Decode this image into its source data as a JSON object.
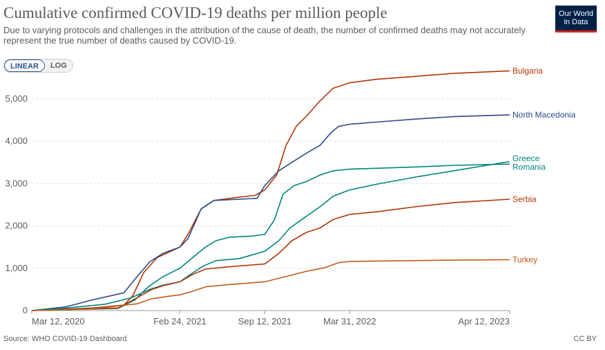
{
  "header": {
    "title": "Cumulative confirmed COVID-19 deaths per million people",
    "subtitle": "Due to varying protocols and challenges in the attribution of the cause of death, the number of confirmed deaths may not accurately represent the true number of deaths caused by COVID-19.",
    "logo_line1": "Our World",
    "logo_line2": "in Data"
  },
  "controls": {
    "linear_label": "LINEAR",
    "log_label": "LOG"
  },
  "footer": {
    "source": "Source: WHO COVID-19 Dashboard",
    "license": "CC BY"
  },
  "chart_data": {
    "type": "line",
    "title": "Cumulative confirmed COVID-19 deaths per million people",
    "xlabel": "",
    "ylabel": "",
    "ylim": [
      0,
      5700
    ],
    "xlim": [
      "2020-03-12",
      "2023-04-12"
    ],
    "yticks": [
      0,
      1000,
      2000,
      3000,
      4000,
      5000
    ],
    "ytick_labels": [
      "0",
      "1,000",
      "2,000",
      "3,000",
      "4,000",
      "5,000"
    ],
    "xticks": [
      "2020-03-12",
      "2021-02-24",
      "2021-09-12",
      "2022-03-31",
      "2023-04-12"
    ],
    "xtick_labels": [
      "Mar 12, 2020",
      "Feb 24, 2021",
      "Sep 12, 2021",
      "Mar 31, 2022",
      "Apr 12, 2023"
    ],
    "grid": "horizontal dashed",
    "legend": "inline labels at right end of lines",
    "series": [
      {
        "name": "Bulgaria",
        "color": "#b13507",
        "x": [
          "2020-03-12",
          "2020-05-01",
          "2020-08-01",
          "2020-10-15",
          "2020-11-05",
          "2020-12-01",
          "2021-01-01",
          "2021-02-24",
          "2021-03-15",
          "2021-04-15",
          "2021-05-15",
          "2021-07-15",
          "2021-08-20",
          "2021-09-12",
          "2021-10-10",
          "2021-11-01",
          "2021-11-25",
          "2021-12-20",
          "2022-01-20",
          "2022-02-20",
          "2022-03-31",
          "2022-06-01",
          "2022-09-01",
          "2022-12-01",
          "2023-04-12"
        ],
        "y": [
          0,
          20,
          60,
          130,
          350,
          900,
          1250,
          1500,
          1800,
          2400,
          2600,
          2680,
          2720,
          2850,
          3200,
          3900,
          4350,
          4600,
          4950,
          5250,
          5380,
          5460,
          5530,
          5600,
          5660
        ]
      },
      {
        "name": "North Macedonia",
        "color": "#2a4a8b",
        "x": [
          "2020-03-12",
          "2020-06-01",
          "2020-08-01",
          "2020-10-15",
          "2020-11-15",
          "2020-12-15",
          "2021-01-15",
          "2021-02-24",
          "2021-03-15",
          "2021-04-15",
          "2021-05-15",
          "2021-07-15",
          "2021-08-25",
          "2021-09-12",
          "2021-10-15",
          "2021-11-15",
          "2021-12-20",
          "2022-01-20",
          "2022-02-15",
          "2022-03-05",
          "2022-03-31",
          "2022-06-01",
          "2022-09-01",
          "2022-12-01",
          "2023-04-12"
        ],
        "y": [
          0,
          90,
          250,
          420,
          800,
          1150,
          1350,
          1500,
          1700,
          2400,
          2600,
          2630,
          2650,
          2950,
          3300,
          3500,
          3720,
          3900,
          4200,
          4350,
          4400,
          4450,
          4520,
          4580,
          4620
        ]
      },
      {
        "name": "Greece",
        "color": "#00847e",
        "x": [
          "2020-03-12",
          "2020-10-01",
          "2020-11-10",
          "2020-12-10",
          "2021-01-15",
          "2021-02-24",
          "2021-03-20",
          "2021-04-25",
          "2021-05-20",
          "2021-06-20",
          "2021-08-15",
          "2021-09-12",
          "2021-10-05",
          "2021-10-25",
          "2021-11-20",
          "2021-12-20",
          "2022-01-20",
          "2022-02-20",
          "2022-03-31",
          "2022-06-01",
          "2022-09-01",
          "2022-12-01",
          "2023-04-12"
        ],
        "y": [
          0,
          50,
          250,
          550,
          800,
          1000,
          1200,
          1500,
          1650,
          1730,
          1760,
          1800,
          2150,
          2750,
          2950,
          3050,
          3200,
          3300,
          3340,
          3360,
          3390,
          3430,
          3460
        ]
      },
      {
        "name": "Romania",
        "color": "#00847e",
        "x": [
          "2020-03-12",
          "2020-06-01",
          "2020-09-01",
          "2020-11-01",
          "2020-12-15",
          "2021-01-15",
          "2021-02-24",
          "2021-03-20",
          "2021-04-20",
          "2021-05-20",
          "2021-07-15",
          "2021-09-12",
          "2021-10-15",
          "2021-11-10",
          "2021-12-15",
          "2022-01-20",
          "2022-02-20",
          "2022-03-31",
          "2022-06-01",
          "2022-09-01",
          "2022-12-01",
          "2023-04-12"
        ],
        "y": [
          0,
          60,
          150,
          300,
          500,
          600,
          680,
          850,
          1050,
          1180,
          1230,
          1400,
          1650,
          1950,
          2200,
          2450,
          2700,
          2850,
          2980,
          3150,
          3300,
          3520
        ]
      },
      {
        "name": "Serbia",
        "color": "#b13507",
        "x": [
          "2020-03-12",
          "2020-10-01",
          "2020-11-15",
          "2020-12-20",
          "2021-01-20",
          "2021-02-24",
          "2021-03-25",
          "2021-04-25",
          "2021-06-15",
          "2021-09-12",
          "2021-10-15",
          "2021-11-15",
          "2021-12-20",
          "2022-01-20",
          "2022-02-20",
          "2022-03-31",
          "2022-06-01",
          "2022-09-01",
          "2022-12-01",
          "2023-04-12"
        ],
        "y": [
          0,
          60,
          300,
          500,
          600,
          680,
          850,
          980,
          1030,
          1100,
          1350,
          1650,
          1850,
          1950,
          2150,
          2270,
          2330,
          2450,
          2550,
          2630
        ]
      },
      {
        "name": "Turkey",
        "color": "#c05917",
        "x": [
          "2020-03-12",
          "2020-08-01",
          "2020-11-15",
          "2020-12-20",
          "2021-01-30",
          "2021-02-24",
          "2021-03-25",
          "2021-04-25",
          "2021-06-15",
          "2021-09-12",
          "2021-10-30",
          "2021-12-20",
          "2022-01-30",
          "2022-03-05",
          "2022-03-31",
          "2022-06-01",
          "2022-12-01",
          "2023-04-12"
        ],
        "y": [
          0,
          40,
          160,
          280,
          340,
          370,
          450,
          560,
          610,
          680,
          800,
          930,
          1010,
          1130,
          1160,
          1170,
          1190,
          1200
        ]
      }
    ]
  }
}
